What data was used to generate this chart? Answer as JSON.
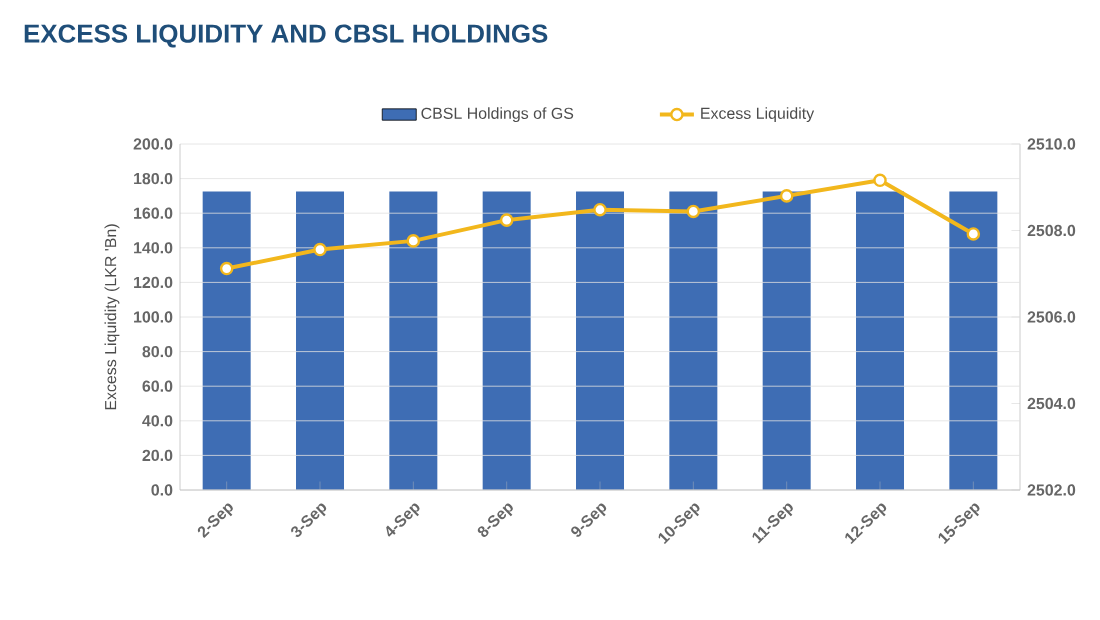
{
  "chart_data": {
    "type": "bar",
    "title": "EXCESS LIQUIDITY AND CBSL HOLDINGS",
    "ylabel": "Excess Liquidity (LKR 'Bn)",
    "categories": [
      "2-Sep",
      "3-Sep",
      "4-Sep",
      "8-Sep",
      "9-Sep",
      "10-Sep",
      "11-Sep",
      "12-Sep",
      "15-Sep"
    ],
    "series": [
      {
        "name": "CBSL Holdings of GS",
        "axis": "y2",
        "color": "#3e6db4",
        "values": [
          2508.9,
          2508.9,
          2508.9,
          2508.9,
          2508.9,
          2508.9,
          2508.9,
          2508.9,
          2508.9
        ]
      },
      {
        "name": "Excess Liquidity",
        "type": "line",
        "color": "#f2b71c",
        "values": [
          128,
          139,
          144,
          156,
          162,
          161,
          170,
          179,
          148
        ]
      }
    ],
    "ylim": [
      0,
      200
    ],
    "yticks": [
      {
        "value": 0,
        "label": "0.0"
      },
      {
        "value": 20,
        "label": "20.0"
      },
      {
        "value": 40,
        "label": "40.0"
      },
      {
        "value": 60,
        "label": "60.0"
      },
      {
        "value": 80,
        "label": "80.0"
      },
      {
        "value": 100,
        "label": "100.0"
      },
      {
        "value": 120,
        "label": "120.0"
      },
      {
        "value": 140,
        "label": "140.0"
      },
      {
        "value": 160,
        "label": "160.0"
      },
      {
        "value": 180,
        "label": "180.0"
      },
      {
        "value": 200,
        "label": "200.0"
      }
    ],
    "y2lim": [
      2502,
      2510
    ],
    "y2ticks": [
      {
        "value": 2502,
        "label": "2502.0"
      },
      {
        "value": 2504,
        "label": "2504.0"
      },
      {
        "value": 2506,
        "label": "2506.0"
      },
      {
        "value": 2508,
        "label": "2508.0"
      },
      {
        "value": 2510,
        "label": "2510.0"
      }
    ],
    "grid": "y",
    "legend": "top",
    "marker": "circle"
  }
}
